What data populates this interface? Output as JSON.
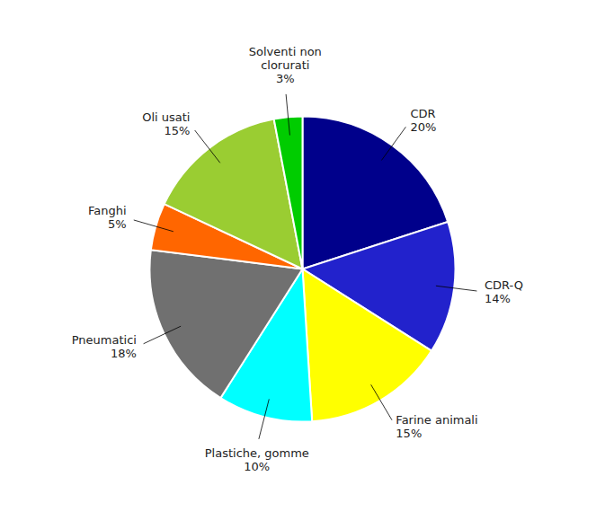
{
  "chart_data": {
    "type": "pie",
    "categories": [
      "CDR",
      "CDR-Q",
      "Farine animali",
      "Plastiche, gomme",
      "Pneumatici",
      "Fanghi",
      "Oli usati",
      "Solventi non\nclorurati"
    ],
    "values": [
      20,
      14,
      15,
      10,
      18,
      5,
      15,
      3
    ],
    "value_labels": [
      "20%",
      "14%",
      "15%",
      "10%",
      "18%",
      "5%",
      "15%",
      "3%"
    ],
    "colors": [
      "#00008B",
      "#2222CC",
      "#FFFF00",
      "#00FFFF",
      "#707070",
      "#FF6600",
      "#9ACD32",
      "#00CC00"
    ],
    "data_labels": true
  }
}
